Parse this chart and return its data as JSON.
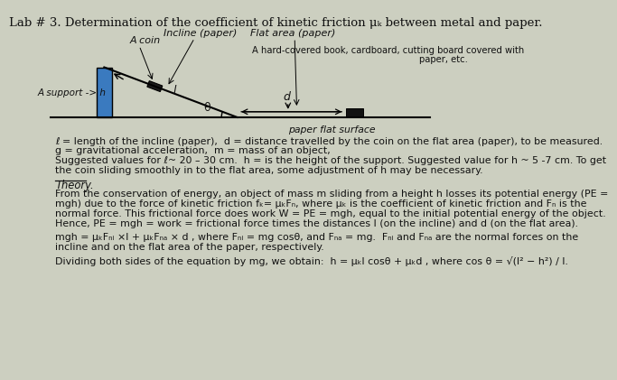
{
  "title": "Lab # 3. Determination of the coefficient of kinetic friction μₖ between metal and paper.",
  "bg_color": "#cccfc0",
  "diagram": {
    "support_label": "A support -> h",
    "coin_label": "A coin",
    "incline_label": "Incline (paper)",
    "flat_label": "Flat area (paper)",
    "book_label": "A hard-covered book, cardboard, cutting board covered with",
    "paper_label": "paper, etc.",
    "flat_surface_label": "paper flat surface",
    "d_label": "d",
    "l_label": "l",
    "theta_label": "θ"
  },
  "paragraphs": [
    "ℓ = length of the incline (paper),  d = distance travelled by the coin on the flat area (paper), to be measured.",
    "g = gravitational acceleration,  m = mass of an object,",
    "Suggested values for ℓ~ 20 – 30 cm.  h = is the height of the support. Suggested value for h ~ 5 -7 cm. To get",
    "the coin sliding smoothly in to the flat area, some adjustment of h may be necessary.",
    "Theory.",
    "From the conservation of energy, an object of mass m sliding from a height h losses its potential energy (PE =",
    "mgh) due to the force of kinetic friction fₖ= μₖFₙ, where μₖ is the coefficient of kinetic friction and Fₙ is the",
    "normal force. This frictional force does work W = PE = mgh, equal to the initial potential energy of the object.",
    "Hence, PE = mgh = work = frictional force times the distances l (on the incline) and d (on the flat area).",
    "mgh = μₖFₙᵢ ×l + μₖFₙₐ × d , where Fₙᵢ = mg cosθ, and Fₙₐ = mg.  Fₙᵢ and Fₙₐ are the normal forces on the",
    "incline and on the flat area of the paper, respectively.",
    "Dividing both sides of the equation by mg, we obtain:  h = μₖl cosθ + μₖd , where cos θ = √(l² − h²) / l."
  ],
  "para_spacing": [
    0,
    14,
    28,
    42,
    62,
    76,
    90,
    104,
    118,
    138,
    152,
    172
  ]
}
